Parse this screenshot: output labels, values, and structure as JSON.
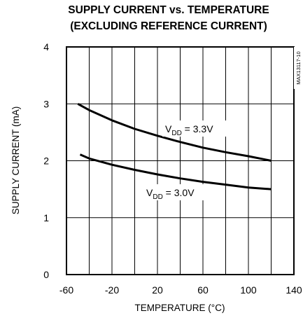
{
  "chart_data": {
    "type": "line",
    "title": "SUPPLY CURRENT vs. TEMPERATURE",
    "subtitle": "(EXCLUDING REFERENCE CURRENT)",
    "xlabel": "TEMPERATURE (°C)",
    "ylabel": "SUPPLY CURRENT  (mA)",
    "xlim": [
      -60,
      140
    ],
    "ylim": [
      0,
      4
    ],
    "x_ticks": [
      "-60",
      "-20",
      "20",
      "60",
      "100",
      "140"
    ],
    "y_ticks": [
      "0",
      "1",
      "2",
      "3",
      "4"
    ],
    "x_tick_values": [
      -60,
      -20,
      20,
      60,
      100,
      140
    ],
    "y_tick_values": [
      0,
      1,
      2,
      3,
      4
    ],
    "x_gridlines": [
      -60,
      -40,
      -20,
      0,
      20,
      40,
      60,
      80,
      100,
      120,
      140
    ],
    "y_gridlines": [
      0,
      1,
      2,
      3,
      4
    ],
    "grid": true,
    "code_label": "MAX13117-10",
    "series": [
      {
        "name": "VDD = 3.3V",
        "label_main": "V",
        "label_sub": "DD",
        "label_rest": " = 3.3V",
        "x": [
          -50,
          -40,
          -20,
          0,
          20,
          40,
          60,
          80,
          100,
          120
        ],
        "values": [
          3.0,
          2.89,
          2.71,
          2.56,
          2.44,
          2.33,
          2.23,
          2.15,
          2.08,
          2.0
        ]
      },
      {
        "name": "VDD = 3.0V",
        "label_main": "V",
        "label_sub": "DD",
        "label_rest": " = 3.0V",
        "x": [
          -48,
          -40,
          -20,
          0,
          20,
          40,
          60,
          80,
          100,
          120
        ],
        "values": [
          2.11,
          2.04,
          1.93,
          1.84,
          1.76,
          1.69,
          1.63,
          1.58,
          1.53,
          1.5
        ]
      }
    ]
  }
}
